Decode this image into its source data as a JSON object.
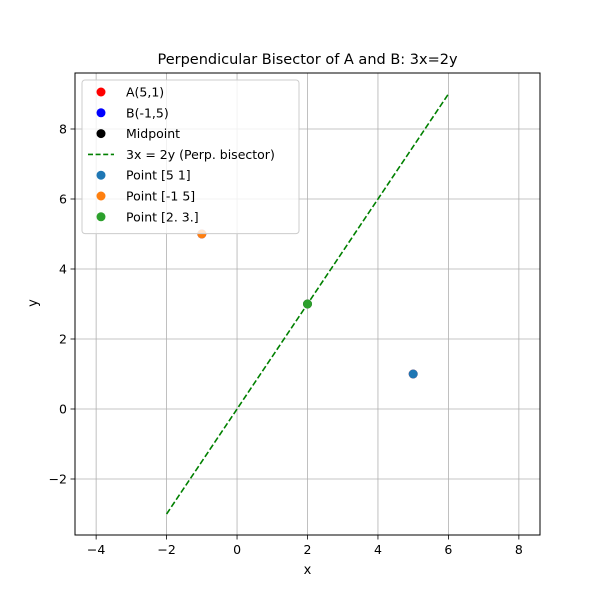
{
  "chart_data": {
    "type": "scatter",
    "title": "Perpendicular Bisector of A and B: 3x=2y",
    "xlabel": "x",
    "ylabel": "y",
    "xlim": [
      -4.6,
      8.6
    ],
    "ylim": [
      -3.6,
      9.6
    ],
    "xticks": [
      -4,
      -2,
      0,
      2,
      4,
      6,
      8
    ],
    "yticks": [
      -2,
      0,
      2,
      4,
      6,
      8
    ],
    "xtick_labels": [
      "−4",
      "−2",
      "0",
      "2",
      "4",
      "6",
      "8"
    ],
    "ytick_labels": [
      "−2",
      "0",
      "2",
      "4",
      "6",
      "8"
    ],
    "grid": true,
    "legend_position": "top-left",
    "series": [
      {
        "name": "A(5,1)",
        "kind": "scatter",
        "color": "#ff0000",
        "x": [
          5
        ],
        "y": [
          1
        ]
      },
      {
        "name": "B(-1,5)",
        "kind": "scatter",
        "color": "#0000ff",
        "x": [
          -1
        ],
        "y": [
          5
        ]
      },
      {
        "name": "Midpoint",
        "kind": "scatter",
        "color": "#000000",
        "x": [
          2
        ],
        "y": [
          3
        ]
      },
      {
        "name": "3x = 2y (Perp. bisector)",
        "kind": "line",
        "style": "dashed",
        "color": "#008000",
        "x": [
          -2,
          6
        ],
        "y": [
          -3,
          9
        ]
      },
      {
        "name": "Point [5 1]",
        "kind": "scatter",
        "color": "#1f77b4",
        "x": [
          5
        ],
        "y": [
          1
        ]
      },
      {
        "name": "Point [-1  5]",
        "kind": "scatter",
        "color": "#ff7f0e",
        "x": [
          -1
        ],
        "y": [
          5
        ]
      },
      {
        "name": "Point [2. 3.]",
        "kind": "scatter",
        "color": "#2ca02c",
        "x": [
          2
        ],
        "y": [
          3
        ]
      }
    ]
  }
}
